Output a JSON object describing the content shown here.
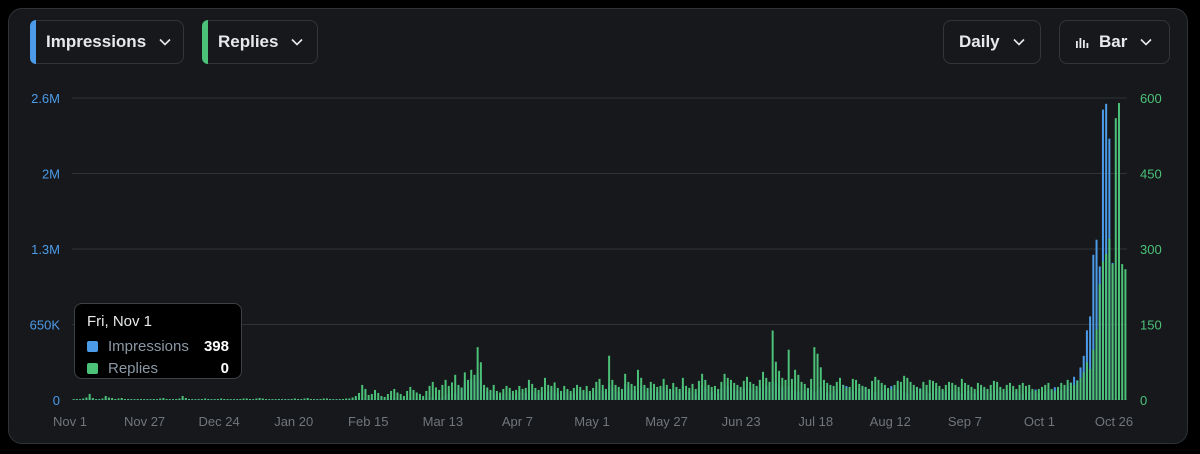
{
  "controls": {
    "metric1": "Impressions",
    "metric2": "Replies",
    "interval": "Daily",
    "chart_type": "Bar"
  },
  "tooltip": {
    "date": "Fri, Nov 1",
    "rows": [
      {
        "name": "Impressions",
        "value": "398",
        "color": "#4c9be8"
      },
      {
        "name": "Replies",
        "value": "0",
        "color": "#4cc178"
      }
    ]
  },
  "colors": {
    "impressions": "#4c9be8",
    "replies": "#4cc178",
    "left_axis": "#4c9be8",
    "right_axis": "#4cc178"
  },
  "chart_data": {
    "type": "bar",
    "x_tick_labels": [
      "Nov 1",
      "Nov 27",
      "Dec 24",
      "Jan 20",
      "Feb 15",
      "Mar 13",
      "Apr 7",
      "May 1",
      "May 27",
      "Jun 23",
      "Jul 18",
      "Aug 12",
      "Sep 7",
      "Oct 1",
      "Oct 26"
    ],
    "y_left": {
      "label": "Impressions",
      "ticks": [
        "0",
        "650K",
        "1.3M",
        "2M",
        "2.6M"
      ],
      "lim": [
        0,
        2600000
      ]
    },
    "y_right": {
      "label": "Replies",
      "ticks": [
        "0",
        "150",
        "300",
        "450",
        "600"
      ],
      "lim": [
        0,
        600
      ]
    },
    "grid": true,
    "series": [
      {
        "name": "Impressions",
        "axis": "left",
        "values": [
          398,
          3000,
          2000,
          4000,
          8000,
          20000,
          6000,
          3000,
          2000,
          4000,
          12000,
          8000,
          6000,
          3000,
          5000,
          7000,
          4000,
          3000,
          2000,
          1000,
          2000,
          3000,
          2000,
          1000,
          2000,
          3000,
          2000,
          4000,
          6000,
          3000,
          2000,
          2000,
          3000,
          5000,
          12000,
          6000,
          3000,
          2000,
          1000,
          2000,
          3000,
          5000,
          3000,
          2000,
          1000,
          3000,
          5000,
          4000,
          3000,
          2000,
          1000,
          2000,
          3000,
          4000,
          5000,
          3000,
          2000,
          4000,
          6000,
          4000,
          3000,
          2000,
          1000,
          2000,
          3000,
          2000,
          1000,
          2000,
          3000,
          5000,
          3000,
          2000,
          4000,
          6000,
          3000,
          2000,
          1000,
          3000,
          4000,
          5000,
          3000,
          2000,
          1000,
          2000,
          3000,
          5000,
          4000,
          8000,
          12000,
          20000,
          15000,
          10000,
          6000,
          8000,
          12000,
          9000,
          6000,
          4000,
          8000,
          12000,
          15000,
          10000,
          8000,
          6000,
          12000,
          18000,
          14000,
          10000,
          8000,
          6000,
          12000,
          20000,
          25000,
          18000,
          14000,
          22000,
          40000,
          55000,
          70000,
          60000,
          120000,
          100000,
          160000,
          130000,
          180000,
          160000,
          230000,
          180000,
          100000,
          70000,
          60000,
          80000,
          50000,
          40000,
          55000,
          70000,
          60000,
          45000,
          50000,
          70000,
          55000,
          60000,
          90000,
          80000,
          60000,
          50000,
          65000,
          90000,
          70000,
          100000,
          80000,
          60000,
          50000,
          70000,
          55000,
          45000,
          60000,
          90000,
          80000,
          60000,
          70000,
          50000,
          60000,
          90000,
          110000,
          80000,
          60000,
          130000,
          100000,
          80000,
          70000,
          60000,
          140000,
          110000,
          90000,
          80000,
          150000,
          120000,
          80000,
          60000,
          100000,
          90000,
          70000,
          80000,
          110000,
          80000,
          60000,
          90000,
          70000,
          60000,
          120000,
          80000,
          70000,
          90000,
          60000,
          100000,
          130000,
          110000,
          90000,
          70000,
          80000,
          60000,
          100000,
          140000,
          120000,
          110000,
          90000,
          80000,
          70000,
          100000,
          120000,
          100000,
          90000,
          80000,
          110000,
          140000,
          120000,
          100000,
          160000,
          150000,
          130000,
          110000,
          100000,
          120000,
          90000,
          80000,
          70000,
          60000,
          80000,
          100000,
          90000,
          70000,
          80000,
          110000,
          90000,
          70000,
          60000,
          80000,
          90000,
          110000,
          130000,
          120000,
          90000,
          80000,
          70000,
          100000,
          120000,
          110000,
          90000,
          80000,
          70000,
          60000,
          80000,
          100000,
          90000,
          120000,
          110000,
          90000,
          80000,
          70000,
          60000,
          90000,
          80000,
          110000,
          100000,
          90000,
          70000,
          60000,
          80000,
          100000,
          90000,
          80000,
          70000,
          110000,
          90000,
          80000,
          70000,
          60000,
          90000,
          80000,
          70000,
          60000,
          80000,
          100000,
          90000,
          70000,
          60000,
          80000,
          90000,
          70000,
          60000,
          80000,
          90000,
          70000,
          80000,
          60000,
          50000,
          60000,
          70000,
          80000,
          90000,
          60000,
          50000,
          70000,
          90000,
          80000,
          110000,
          90000,
          80000,
          100000,
          120000,
          150000,
          200000,
          170000,
          280000,
          380000,
          600000,
          720000,
          1250000,
          1380000,
          1150000,
          2500000,
          2550000,
          2250000,
          1180000
        ],
        "color": "#4c9be8"
      },
      {
        "name": "Replies",
        "axis": "right",
        "values": [
          0,
          2,
          1,
          3,
          5,
          12,
          4,
          2,
          1,
          3,
          8,
          5,
          4,
          2,
          3,
          4,
          2,
          2,
          1,
          1,
          1,
          2,
          1,
          1,
          1,
          2,
          1,
          3,
          4,
          2,
          1,
          1,
          2,
          3,
          8,
          4,
          2,
          1,
          1,
          1,
          2,
          3,
          2,
          1,
          1,
          2,
          3,
          2,
          2,
          1,
          1,
          1,
          2,
          3,
          3,
          2,
          1,
          3,
          4,
          3,
          2,
          1,
          1,
          1,
          2,
          1,
          1,
          1,
          2,
          3,
          2,
          1,
          3,
          4,
          2,
          1,
          1,
          2,
          3,
          3,
          2,
          1,
          1,
          1,
          2,
          3,
          3,
          5,
          8,
          14,
          30,
          22,
          10,
          12,
          20,
          14,
          8,
          6,
          12,
          18,
          22,
          15,
          12,
          8,
          18,
          26,
          20,
          15,
          12,
          8,
          18,
          28,
          36,
          25,
          20,
          30,
          40,
          28,
          35,
          50,
          30,
          25,
          55,
          40,
          60,
          50,
          105,
          75,
          30,
          25,
          20,
          30,
          18,
          15,
          22,
          28,
          24,
          18,
          20,
          28,
          22,
          24,
          40,
          32,
          24,
          20,
          26,
          44,
          30,
          28,
          35,
          24,
          18,
          28,
          22,
          18,
          24,
          30,
          26,
          20,
          28,
          18,
          24,
          36,
          42,
          30,
          22,
          88,
          40,
          30,
          26,
          22,
          52,
          36,
          32,
          28,
          60,
          44,
          30,
          24,
          36,
          32,
          26,
          28,
          42,
          30,
          22,
          34,
          26,
          22,
          44,
          28,
          24,
          32,
          22,
          38,
          52,
          40,
          30,
          26,
          28,
          22,
          36,
          52,
          44,
          40,
          34,
          30,
          26,
          38,
          46,
          36,
          32,
          28,
          40,
          56,
          44,
          36,
          138,
          76,
          58,
          44,
          40,
          100,
          42,
          60,
          50,
          36,
          32,
          24,
          42,
          105,
          92,
          65,
          40,
          34,
          30,
          28,
          36,
          44,
          30,
          24,
          26,
          42,
          40,
          32,
          28,
          26,
          22,
          38,
          46,
          40,
          34,
          30,
          24,
          22,
          30,
          38,
          36,
          48,
          44,
          36,
          30,
          26,
          22,
          36,
          30,
          40,
          38,
          34,
          28,
          22,
          30,
          36,
          34,
          30,
          26,
          42,
          34,
          30,
          26,
          22,
          34,
          30,
          26,
          22,
          30,
          38,
          36,
          26,
          22,
          30,
          34,
          28,
          22,
          30,
          34,
          28,
          30,
          22,
          18,
          22,
          26,
          30,
          34,
          22,
          18,
          26,
          34,
          30,
          40,
          34,
          30,
          38,
          44,
          55,
          75,
          62,
          100,
          140,
          230,
          275,
          290,
          320,
          270,
          560,
          590,
          270,
          260
        ],
        "color": "#4cc178"
      }
    ]
  }
}
